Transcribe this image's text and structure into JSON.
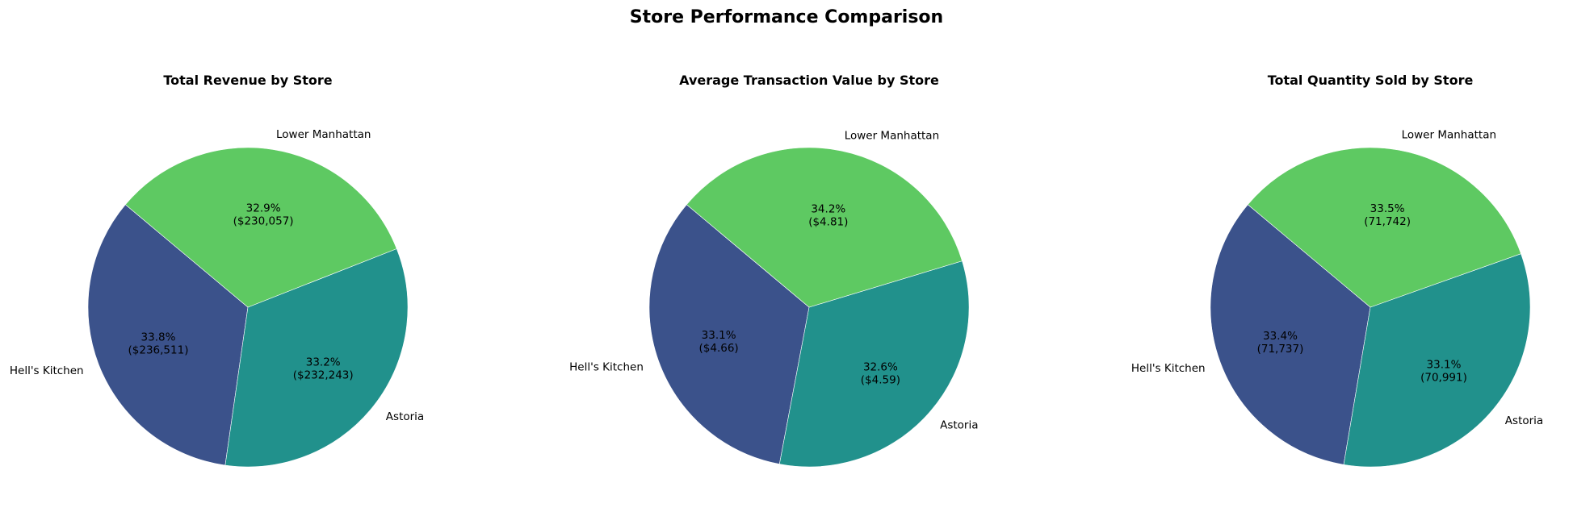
{
  "figure_title": "Store Performance Comparison",
  "chart_data": [
    {
      "type": "pie",
      "title": "Total Revenue by Store",
      "labels": [
        "Hell's Kitchen",
        "Astoria",
        "Lower Manhattan"
      ],
      "values": [
        236511,
        232243,
        230057
      ],
      "pct_labels": [
        "33.8%",
        "33.2%",
        "32.9%"
      ],
      "value_labels": [
        "($236,511)",
        "($232,243)",
        "($230,057)"
      ],
      "colors": [
        "#3b528b",
        "#21918c",
        "#5ec962"
      ],
      "start_angle": 140
    },
    {
      "type": "pie",
      "title": "Average Transaction Value by Store",
      "labels": [
        "Hell's Kitchen",
        "Astoria",
        "Lower Manhattan"
      ],
      "values": [
        4.66,
        4.59,
        4.81
      ],
      "pct_labels": [
        "33.1%",
        "32.6%",
        "34.2%"
      ],
      "value_labels": [
        "($4.66)",
        "($4.59)",
        "($4.81)"
      ],
      "colors": [
        "#3b528b",
        "#21918c",
        "#5ec962"
      ],
      "start_angle": 140
    },
    {
      "type": "pie",
      "title": "Total Quantity Sold by Store",
      "labels": [
        "Hell's Kitchen",
        "Astoria",
        "Lower Manhattan"
      ],
      "values": [
        71737,
        70991,
        71742
      ],
      "pct_labels": [
        "33.4%",
        "33.1%",
        "33.5%"
      ],
      "value_labels": [
        "(71,737)",
        "(70,991)",
        "(71,742)"
      ],
      "colors": [
        "#3b528b",
        "#21918c",
        "#5ec962"
      ],
      "start_angle": 140
    }
  ]
}
